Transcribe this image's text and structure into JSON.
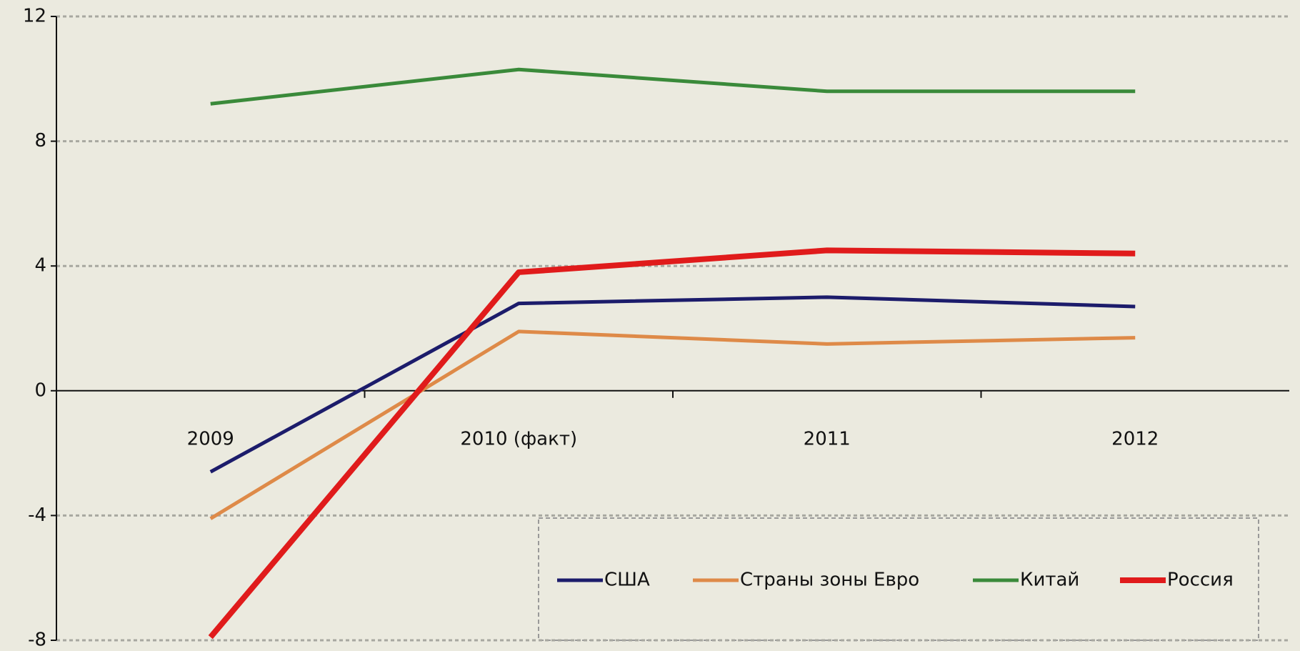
{
  "chart_data": {
    "type": "line",
    "categories": [
      "2009",
      "2010 (факт)",
      "2011",
      "2012"
    ],
    "series": [
      {
        "name": "США",
        "color": "#1c1c6b",
        "values": [
          -2.6,
          2.8,
          3.0,
          2.7
        ]
      },
      {
        "name": "Страны зоны Евро",
        "color": "#de8a48",
        "values": [
          -4.1,
          1.9,
          1.5,
          1.7
        ]
      },
      {
        "name": "Китай",
        "color": "#3a8a3a",
        "values": [
          9.2,
          10.3,
          9.6,
          9.6
        ]
      },
      {
        "name": "Россия",
        "color": "#e01b1b",
        "values": [
          -7.9,
          3.8,
          4.5,
          4.4
        ]
      }
    ],
    "ylim": [
      -8,
      12
    ],
    "yticks": [
      -8,
      -4,
      0,
      4,
      8,
      12
    ],
    "grid": true,
    "legend": "lower right"
  }
}
